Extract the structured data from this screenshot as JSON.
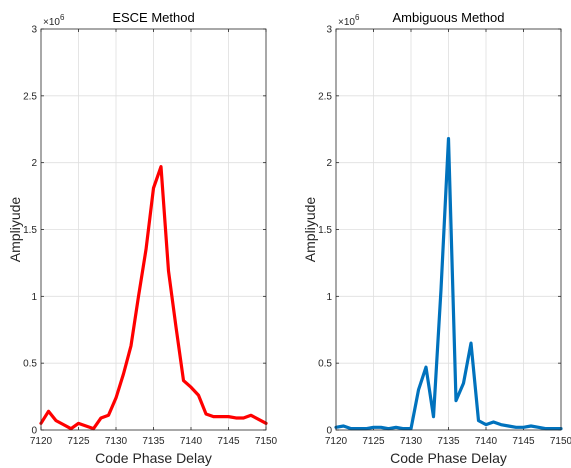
{
  "chart_data": [
    {
      "type": "line",
      "title": "ESCE Method",
      "xlabel": "Code Phase Delay",
      "ylabel": "Ampliyude",
      "y_multiplier": "×10",
      "y_multiplier_exp": "6",
      "xlim": [
        7120,
        7150
      ],
      "ylim": [
        0,
        3
      ],
      "x_ticks": [
        "7120",
        "7125",
        "7130",
        "7135",
        "7140",
        "7145",
        "7150"
      ],
      "y_ticks": [
        "0",
        "0.5",
        "1",
        "1.5",
        "2",
        "2.5",
        "3"
      ],
      "grid": true,
      "series": [
        {
          "color": "#ff0000",
          "x": [
            7120,
            7121,
            7122,
            7123,
            7124,
            7125,
            7126,
            7127,
            7128,
            7129,
            7130,
            7131,
            7132,
            7133,
            7134,
            7135,
            7136,
            7137,
            7138,
            7139,
            7140,
            7141,
            7142,
            7143,
            7144,
            7145,
            7146,
            7147,
            7148,
            7149,
            7150
          ],
          "y": [
            0.05,
            0.14,
            0.07,
            0.04,
            0.01,
            0.05,
            0.03,
            0.01,
            0.09,
            0.11,
            0.24,
            0.42,
            0.63,
            1.0,
            1.35,
            1.81,
            1.97,
            1.19,
            0.77,
            0.37,
            0.32,
            0.26,
            0.12,
            0.1,
            0.1,
            0.1,
            0.09,
            0.09,
            0.11,
            0.08,
            0.05
          ]
        }
      ]
    },
    {
      "type": "line",
      "title": "Ambiguous Method",
      "xlabel": "Code Phase Delay",
      "ylabel": "Ampliyude",
      "y_multiplier": "×10",
      "y_multiplier_exp": "6",
      "xlim": [
        7120,
        7150
      ],
      "ylim": [
        0,
        3
      ],
      "x_ticks": [
        "7120",
        "7125",
        "7130",
        "7135",
        "7140",
        "7145",
        "7150"
      ],
      "y_ticks": [
        "0",
        "0.5",
        "1",
        "1.5",
        "2",
        "2.5",
        "3"
      ],
      "grid": true,
      "series": [
        {
          "color": "#0072bd",
          "x": [
            7120,
            7121,
            7122,
            7123,
            7124,
            7125,
            7126,
            7127,
            7128,
            7129,
            7130,
            7131,
            7132,
            7133,
            7134,
            7135,
            7136,
            7137,
            7138,
            7139,
            7140,
            7141,
            7142,
            7143,
            7144,
            7145,
            7146,
            7147,
            7148,
            7149,
            7150
          ],
          "y": [
            0.02,
            0.03,
            0.01,
            0.01,
            0.01,
            0.02,
            0.02,
            0.01,
            0.02,
            0.01,
            0.01,
            0.3,
            0.47,
            0.1,
            1.05,
            2.18,
            0.22,
            0.35,
            0.65,
            0.07,
            0.04,
            0.06,
            0.04,
            0.03,
            0.02,
            0.02,
            0.03,
            0.02,
            0.01,
            0.01,
            0.01
          ]
        }
      ]
    }
  ]
}
